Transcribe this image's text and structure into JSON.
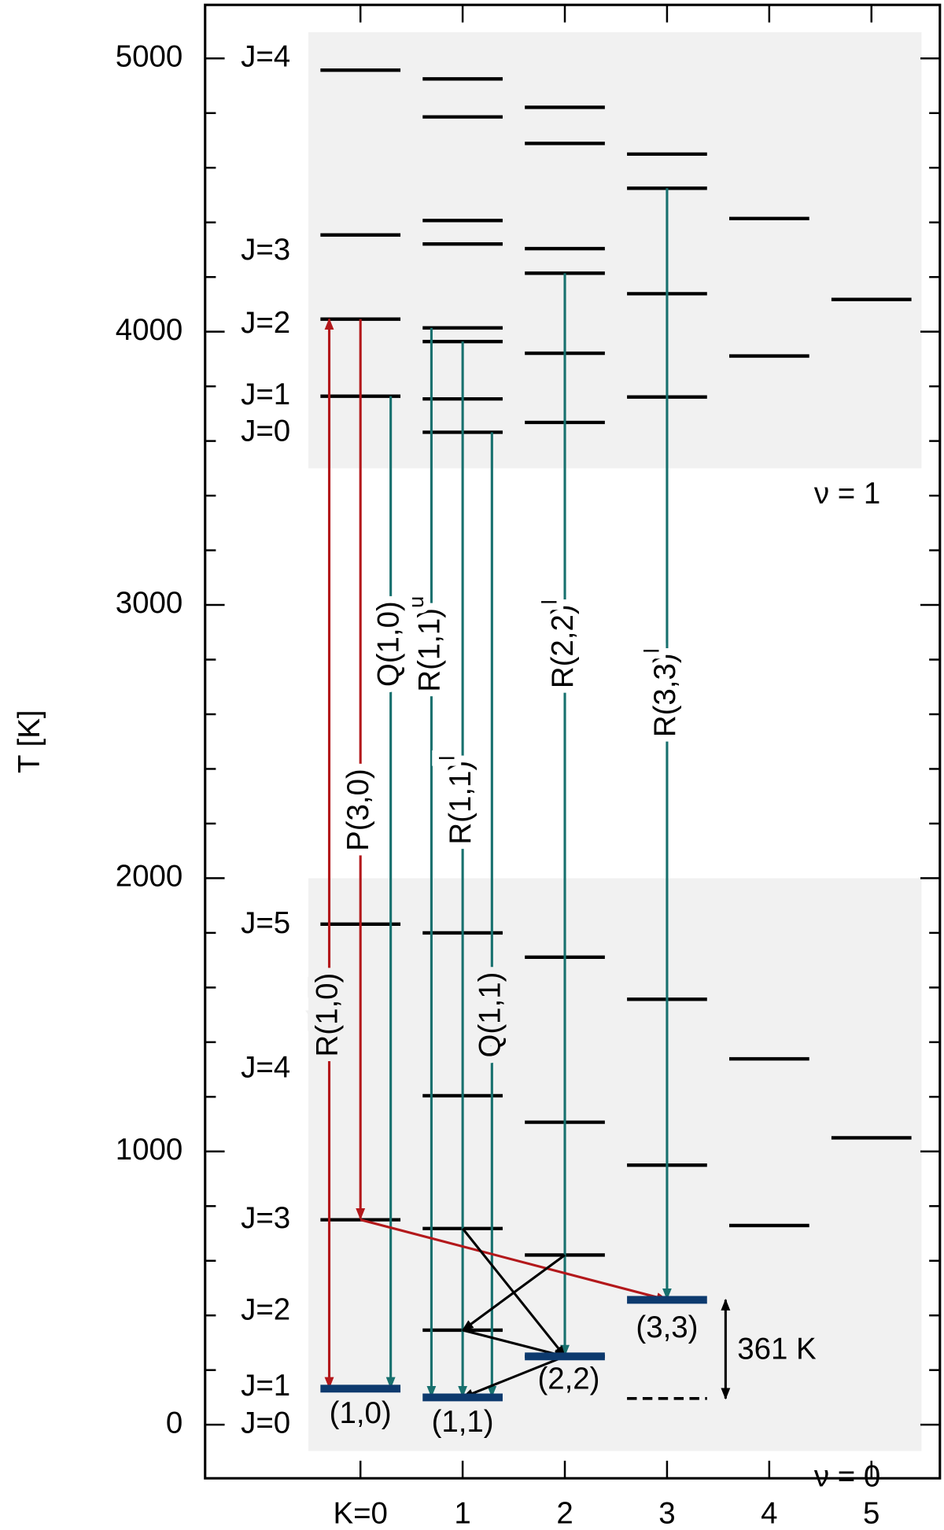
{
  "chart_data": {
    "type": "level-diagram",
    "ylabel": "T [K]",
    "xlim": [
      -1.52,
      5.67
    ],
    "ylim": [
      -196,
      5196
    ],
    "xticks": [
      {
        "value": 0,
        "label": "K=0"
      },
      1,
      2,
      3,
      4,
      5
    ],
    "yticks": [
      0,
      1000,
      2000,
      3000,
      4000,
      5000
    ],
    "yminorticks": [
      200,
      400,
      600,
      800,
      1200,
      1400,
      1600,
      1800,
      2200,
      2400,
      2600,
      2800,
      3200,
      3400,
      3600,
      3800,
      4200,
      4400,
      4600,
      4800
    ],
    "bands": [
      {
        "label": "ν = 1",
        "region": {
          "x": [
            -0.51,
            5.49
          ],
          "y": [
            3500,
            5096
          ]
        },
        "levels": [
          {
            "k": 0,
            "values": [
              3764,
              4046,
              4354,
              4957
            ]
          },
          {
            "k": 1,
            "values": [
              3632,
              3754,
              3964,
              4014,
              4321,
              4407,
              4786,
              4925
            ]
          },
          {
            "k": 2,
            "values": [
              3668,
              3921,
              4214,
              4304,
              4689,
              4821
            ]
          },
          {
            "k": 3,
            "values": [
              3761,
              4139,
              4525,
              4650
            ]
          },
          {
            "k": 4,
            "values": [
              3911,
              4414
            ]
          },
          {
            "k": 5,
            "values": [
              4118
            ]
          }
        ]
      },
      {
        "label": "ν = 0",
        "region": {
          "x": [
            -0.51,
            5.49
          ],
          "y": [
            -96,
            2000
          ]
        },
        "levels": [
          {
            "k": 0,
            "values": [
              750,
              1832
            ]
          },
          {
            "k": 1,
            "values": [
              346,
              718,
              1204,
              1800
            ]
          },
          {
            "k": 2,
            "values": [
              250,
              621,
              1107,
              1711
            ]
          },
          {
            "k": 3,
            "values": [
              950,
              1557
            ]
          },
          {
            "k": 4,
            "values": [
              729,
              1339
            ]
          },
          {
            "k": 5,
            "values": [
              1050
            ]
          }
        ]
      }
    ],
    "states": [
      {
        "label": "(1,0)",
        "k": 0,
        "T": 132
      },
      {
        "label": "(1,1)",
        "k": 1,
        "T": 100
      },
      {
        "label": "(3,3)",
        "k": 3,
        "T": 457
      },
      {
        "label": "(2,2)",
        "k": 2,
        "T": 250
      }
    ],
    "gap": {
      "label": "361 K",
      "k": 3,
      "from": 96,
      "to": 457
    },
    "jlabels": [
      {
        "label": "J=4",
        "T": 5000
      },
      {
        "label": "J=3",
        "T": 4293
      },
      {
        "label": "J=2",
        "T": 4025
      },
      {
        "label": "J=1",
        "T": 3764
      },
      {
        "label": "J=0",
        "T": 3629
      },
      {
        "label": "J=5",
        "T": 1829
      },
      {
        "label": "J=4",
        "T": 1300
      },
      {
        "label": "J=3",
        "T": 750
      },
      {
        "label": "J=2",
        "T": 414
      },
      {
        "label": "J=1",
        "T": 136
      },
      {
        "label": "J=0",
        "T": 0
      }
    ],
    "transitions": [
      {
        "label": "R(1,0)",
        "k": 0,
        "upper": 4046,
        "lower": 132,
        "color": "#b3181b"
      },
      {
        "label": "P(3,0)",
        "k": 0,
        "upper": 4046,
        "lower": 750,
        "color": "#b3181b"
      },
      {
        "label": "Q(1,0)",
        "k": 0,
        "upper": 3764,
        "lower": 132,
        "color": "#17706e"
      },
      {
        "label": "R(1,1)",
        "sup": "u",
        "k": 1,
        "upper": 4014,
        "lower": 100,
        "color": "#17706e"
      },
      {
        "label": "R(1,1)",
        "sup": "l",
        "k": 1,
        "upper": 3964,
        "lower": 100,
        "color": "#17706e"
      },
      {
        "label": "Q(1,1)",
        "k": 1,
        "upper": 3632,
        "lower": 100,
        "color": "#17706e"
      },
      {
        "label": "R(2,2)",
        "sup": "l",
        "k": 2,
        "upper": 4214,
        "lower": 250,
        "color": "#17706e"
      },
      {
        "label": "R(3,3)",
        "sup": "l",
        "k": 3,
        "upper": 4525,
        "lower": 457,
        "color": "#17706e"
      }
    ],
    "collisions": [
      {
        "x": [
          0,
          3
        ],
        "y": [
          750,
          457
        ],
        "color": "#b3181b"
      },
      {
        "x": [
          1,
          2
        ],
        "y": [
          718,
          250
        ],
        "color": "#000000"
      },
      {
        "x": [
          2,
          1
        ],
        "y": [
          621,
          346
        ],
        "color": "#000000"
      },
      {
        "x": [
          1,
          2
        ],
        "y": [
          346,
          250
        ],
        "color": "#000000"
      },
      {
        "x": [
          2,
          1
        ],
        "y": [
          250,
          100
        ],
        "color": "#000000"
      }
    ],
    "state_color": "#0d3a6e",
    "band_color": "#f1f1f1"
  }
}
